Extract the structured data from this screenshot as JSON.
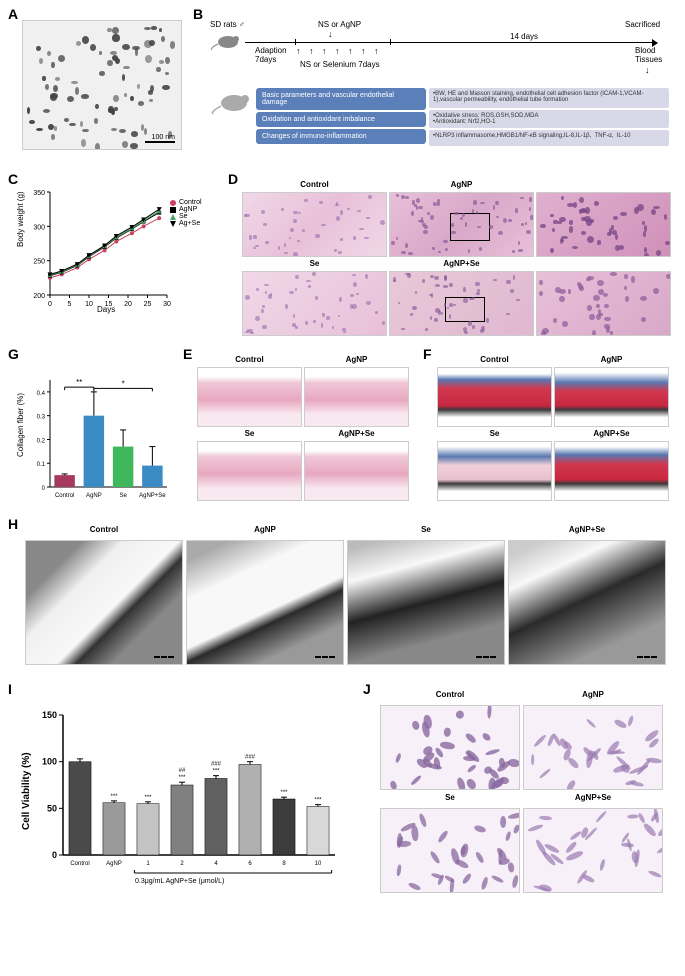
{
  "panelA": {
    "label": "A",
    "scalebar_text": "100 nm"
  },
  "panelB": {
    "label": "B",
    "sd_rats": "SD rats ♂",
    "adaption": "Adaption\n7days",
    "ns_or_agnp": "NS or AgNP",
    "ns_or_se": "NS or Selenium 7days",
    "days14": "14 days",
    "sacrificed": "Sacrificed",
    "blood_tissues": "Blood\nTissues",
    "methods": [
      {
        "title": "Basic parameters and vascular endothelial damage",
        "desc": "•BW, HE and Masson staining, endothelial cell adhesion factor (ICAM-1,VCAM-1),vascular permeability, endothelial tube formation"
      },
      {
        "title": "Oxidation and antioxidant imbalance",
        "desc": "•Oxidative stress: ROS,GSH,SOD,MDA\n•Antioxidant: Nrf2,HO-1"
      },
      {
        "title": "Changes of immuno-inflammation",
        "desc": "•NLRP3 inflammasome,HMGB1/NF-κB signaling,IL-8,IL-1β,  TNF-α,  IL-10"
      }
    ]
  },
  "panelC": {
    "label": "C",
    "ylabel": "Body weight (g)",
    "xlabel": "Days",
    "yticks": [
      200,
      250,
      300,
      350
    ],
    "xticks": [
      0,
      5,
      10,
      15,
      20,
      25,
      30
    ],
    "ylim": [
      200,
      350
    ],
    "xlim": [
      0,
      30
    ],
    "series": [
      {
        "name": "Control",
        "color": "#c94260",
        "marker": "circle",
        "data": [
          [
            0,
            225
          ],
          [
            3,
            230
          ],
          [
            7,
            240
          ],
          [
            10,
            252
          ],
          [
            14,
            265
          ],
          [
            17,
            278
          ],
          [
            21,
            290
          ],
          [
            24,
            300
          ],
          [
            28,
            312
          ]
        ]
      },
      {
        "name": "AgNP",
        "color": "#000000",
        "marker": "square",
        "data": [
          [
            0,
            228
          ],
          [
            3,
            233
          ],
          [
            7,
            243
          ],
          [
            10,
            256
          ],
          [
            14,
            270
          ],
          [
            17,
            283
          ],
          [
            21,
            296
          ],
          [
            24,
            307
          ],
          [
            28,
            320
          ]
        ]
      },
      {
        "name": "Se",
        "color": "#4aa564",
        "marker": "triangle",
        "data": [
          [
            0,
            229
          ],
          [
            3,
            234
          ],
          [
            7,
            244
          ],
          [
            10,
            257
          ],
          [
            14,
            271
          ],
          [
            17,
            284
          ],
          [
            21,
            297
          ],
          [
            24,
            308
          ],
          [
            28,
            322
          ]
        ]
      },
      {
        "name": "Ag+Se",
        "color": "#000000",
        "marker": "down-triangle",
        "data": [
          [
            0,
            230
          ],
          [
            3,
            235
          ],
          [
            7,
            245
          ],
          [
            10,
            258
          ],
          [
            14,
            272
          ],
          [
            17,
            286
          ],
          [
            21,
            299
          ],
          [
            24,
            310
          ],
          [
            28,
            325
          ]
        ]
      }
    ]
  },
  "panelD": {
    "label": "D",
    "groups": [
      "Control",
      "AgNP",
      "Se",
      "AgNP+Se"
    ]
  },
  "panelE": {
    "label": "E",
    "groups": [
      "Control",
      "AgNP",
      "Se",
      "AgNP+Se"
    ]
  },
  "panelF": {
    "label": "F",
    "groups": [
      "Control",
      "AgNP",
      "Se",
      "AgNP+Se"
    ]
  },
  "panelG": {
    "label": "G",
    "ylabel": "Collagen fiber (%)",
    "yticks": [
      0,
      0.1,
      0.2,
      0.3,
      0.4
    ],
    "categories": [
      "Control",
      "AgNP",
      "Se",
      "AgNP+Se"
    ],
    "values": [
      0.05,
      0.3,
      0.17,
      0.09
    ],
    "errors": [
      0.005,
      0.1,
      0.07,
      0.08
    ],
    "colors": [
      "#a63a5c",
      "#3b8bc4",
      "#3fb85c",
      "#3b8bc4"
    ],
    "sig": [
      {
        "from": 0,
        "to": 1,
        "y": 0.42,
        "label": "**"
      },
      {
        "from": 1,
        "to": 3,
        "y": 0.415,
        "label": "*"
      }
    ]
  },
  "panelH": {
    "label": "H",
    "groups": [
      "Control",
      "AgNP",
      "Se",
      "AgNP+Se"
    ]
  },
  "panelI": {
    "label": "I",
    "ylabel": "Cell Viability (%)",
    "xlabel": "0.3μg/mL AgNP+Se (μmol/L)",
    "yticks": [
      0,
      50,
      100,
      150
    ],
    "categories": [
      "Control",
      "AgNP",
      "1",
      "2",
      "4",
      "6",
      "8",
      "10"
    ],
    "values": [
      100,
      56,
      55,
      75,
      82,
      97,
      60,
      52
    ],
    "errors": [
      3,
      2,
      2,
      3,
      3,
      3,
      2,
      2
    ],
    "colors": [
      "#4a4a4a",
      "#9a9a9a",
      "#c4c4c4",
      "#808080",
      "#606060",
      "#b0b0b0",
      "#3c3c3c",
      "#d8d8d8"
    ],
    "sig_above": [
      "",
      "***",
      "***",
      "***\n##",
      "***\n###",
      "###",
      "***",
      "***"
    ]
  },
  "panelJ": {
    "label": "J",
    "groups": [
      "Control",
      "AgNP",
      "Se",
      "AgNP+Se"
    ]
  },
  "histology_colors": {
    "he_pink": "#e8b8d0",
    "he_purple": "#9a6aa8",
    "masson_red": "#d03850",
    "masson_blue": "#4060a0",
    "tem_gray": "#808080"
  }
}
